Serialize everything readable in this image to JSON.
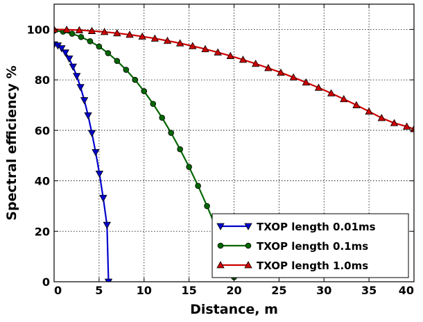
{
  "chart_data": {
    "type": "line",
    "title": "",
    "xlabel": "Distance, m",
    "ylabel": "Spectral efficiency %",
    "xlim": [
      0,
      40
    ],
    "ylim": [
      0,
      110
    ],
    "xticks": [
      0,
      5,
      10,
      15,
      20,
      25,
      30,
      35,
      40
    ],
    "yticks": [
      0,
      20,
      40,
      60,
      80,
      100
    ],
    "grid": true,
    "legend_position": "lower-right",
    "series": [
      {
        "name": "TXOP length 0.01ms",
        "color": "#0000cc",
        "marker": "triangle-down",
        "x": [
          0,
          0.42,
          0.84,
          1.26,
          1.68,
          2.1,
          2.52,
          2.94,
          3.36,
          3.78,
          4.2,
          4.62,
          5.04,
          5.46,
          5.88,
          6.05
        ],
        "y": [
          94,
          93.6,
          92.5,
          90.8,
          88.4,
          85.2,
          81.5,
          77.1,
          71.9,
          65.9,
          58.9,
          51.3,
          42.8,
          33.2,
          22.5,
          0
        ]
      },
      {
        "name": "TXOP length 0.1ms",
        "color": "#006600",
        "marker": "circle",
        "x": [
          0,
          1.0,
          2.0,
          3.0,
          4.0,
          5.0,
          6.0,
          7.0,
          8.0,
          9.0,
          10.0,
          11.0,
          12.0,
          13.0,
          14.0,
          15.0,
          16.0,
          17.0,
          18.0,
          19.0,
          20.0
        ],
        "y": [
          99.5,
          99.1,
          98.3,
          97.0,
          95.3,
          93.2,
          90.6,
          87.5,
          84.0,
          80.0,
          75.5,
          70.5,
          65.0,
          59.0,
          52.5,
          45.5,
          38.0,
          30.0,
          21.5,
          12.5,
          1.8
        ]
      },
      {
        "name": "TXOP length 1.0ms",
        "color": "#cc0000",
        "marker": "triangle-up",
        "x": [
          0,
          1.4,
          2.8,
          4.2,
          5.6,
          7.0,
          8.4,
          9.8,
          11.2,
          12.6,
          14.0,
          15.4,
          16.8,
          18.2,
          19.6,
          21.0,
          22.4,
          23.8,
          25.2,
          26.6,
          28.0,
          29.4,
          30.8,
          32.2,
          33.6,
          35.0,
          36.4,
          37.8,
          39.2,
          40.0
        ],
        "y": [
          100,
          99.9,
          99.7,
          99.4,
          99.0,
          98.5,
          97.9,
          97.2,
          96.4,
          95.5,
          94.5,
          93.4,
          92.2,
          90.9,
          89.5,
          88.0,
          86.4,
          84.7,
          82.9,
          81.0,
          79.0,
          76.9,
          74.7,
          72.4,
          70.0,
          67.5,
          64.9,
          62.9,
          61.5,
          60.5
        ]
      }
    ]
  }
}
